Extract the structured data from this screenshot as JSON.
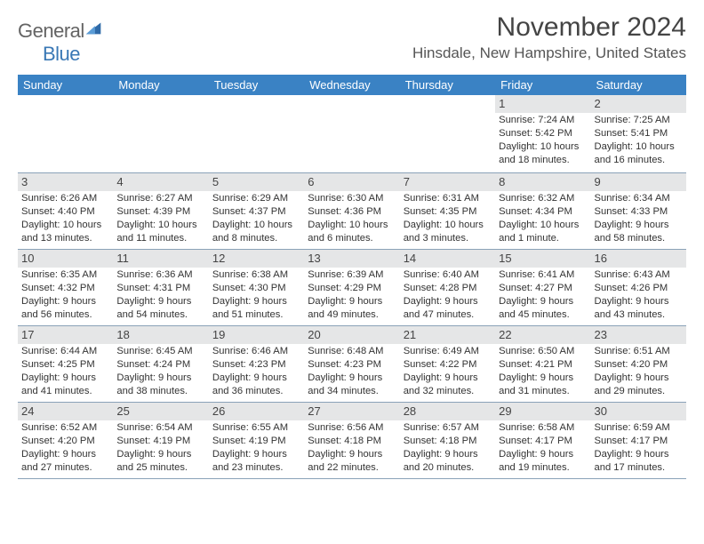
{
  "branding": {
    "word1": "General",
    "word2": "Blue",
    "word1_color": "#646464",
    "word2_color": "#3a78b5",
    "mark_color": "#2f6aa8"
  },
  "title": "November 2024",
  "location": "Hinsdale, New Hampshire, United States",
  "header_bg": "#3a82c4",
  "header_fg": "#ffffff",
  "daynum_bg": "#e5e6e7",
  "border_color": "#8aa2b8",
  "day_headers": [
    "Sunday",
    "Monday",
    "Tuesday",
    "Wednesday",
    "Thursday",
    "Friday",
    "Saturday"
  ],
  "weeks": [
    [
      null,
      null,
      null,
      null,
      null,
      {
        "n": "1",
        "sunrise": "Sunrise: 7:24 AM",
        "sunset": "Sunset: 5:42 PM",
        "dl1": "Daylight: 10 hours",
        "dl2": "and 18 minutes."
      },
      {
        "n": "2",
        "sunrise": "Sunrise: 7:25 AM",
        "sunset": "Sunset: 5:41 PM",
        "dl1": "Daylight: 10 hours",
        "dl2": "and 16 minutes."
      }
    ],
    [
      {
        "n": "3",
        "sunrise": "Sunrise: 6:26 AM",
        "sunset": "Sunset: 4:40 PM",
        "dl1": "Daylight: 10 hours",
        "dl2": "and 13 minutes."
      },
      {
        "n": "4",
        "sunrise": "Sunrise: 6:27 AM",
        "sunset": "Sunset: 4:39 PM",
        "dl1": "Daylight: 10 hours",
        "dl2": "and 11 minutes."
      },
      {
        "n": "5",
        "sunrise": "Sunrise: 6:29 AM",
        "sunset": "Sunset: 4:37 PM",
        "dl1": "Daylight: 10 hours",
        "dl2": "and 8 minutes."
      },
      {
        "n": "6",
        "sunrise": "Sunrise: 6:30 AM",
        "sunset": "Sunset: 4:36 PM",
        "dl1": "Daylight: 10 hours",
        "dl2": "and 6 minutes."
      },
      {
        "n": "7",
        "sunrise": "Sunrise: 6:31 AM",
        "sunset": "Sunset: 4:35 PM",
        "dl1": "Daylight: 10 hours",
        "dl2": "and 3 minutes."
      },
      {
        "n": "8",
        "sunrise": "Sunrise: 6:32 AM",
        "sunset": "Sunset: 4:34 PM",
        "dl1": "Daylight: 10 hours",
        "dl2": "and 1 minute."
      },
      {
        "n": "9",
        "sunrise": "Sunrise: 6:34 AM",
        "sunset": "Sunset: 4:33 PM",
        "dl1": "Daylight: 9 hours",
        "dl2": "and 58 minutes."
      }
    ],
    [
      {
        "n": "10",
        "sunrise": "Sunrise: 6:35 AM",
        "sunset": "Sunset: 4:32 PM",
        "dl1": "Daylight: 9 hours",
        "dl2": "and 56 minutes."
      },
      {
        "n": "11",
        "sunrise": "Sunrise: 6:36 AM",
        "sunset": "Sunset: 4:31 PM",
        "dl1": "Daylight: 9 hours",
        "dl2": "and 54 minutes."
      },
      {
        "n": "12",
        "sunrise": "Sunrise: 6:38 AM",
        "sunset": "Sunset: 4:30 PM",
        "dl1": "Daylight: 9 hours",
        "dl2": "and 51 minutes."
      },
      {
        "n": "13",
        "sunrise": "Sunrise: 6:39 AM",
        "sunset": "Sunset: 4:29 PM",
        "dl1": "Daylight: 9 hours",
        "dl2": "and 49 minutes."
      },
      {
        "n": "14",
        "sunrise": "Sunrise: 6:40 AM",
        "sunset": "Sunset: 4:28 PM",
        "dl1": "Daylight: 9 hours",
        "dl2": "and 47 minutes."
      },
      {
        "n": "15",
        "sunrise": "Sunrise: 6:41 AM",
        "sunset": "Sunset: 4:27 PM",
        "dl1": "Daylight: 9 hours",
        "dl2": "and 45 minutes."
      },
      {
        "n": "16",
        "sunrise": "Sunrise: 6:43 AM",
        "sunset": "Sunset: 4:26 PM",
        "dl1": "Daylight: 9 hours",
        "dl2": "and 43 minutes."
      }
    ],
    [
      {
        "n": "17",
        "sunrise": "Sunrise: 6:44 AM",
        "sunset": "Sunset: 4:25 PM",
        "dl1": "Daylight: 9 hours",
        "dl2": "and 41 minutes."
      },
      {
        "n": "18",
        "sunrise": "Sunrise: 6:45 AM",
        "sunset": "Sunset: 4:24 PM",
        "dl1": "Daylight: 9 hours",
        "dl2": "and 38 minutes."
      },
      {
        "n": "19",
        "sunrise": "Sunrise: 6:46 AM",
        "sunset": "Sunset: 4:23 PM",
        "dl1": "Daylight: 9 hours",
        "dl2": "and 36 minutes."
      },
      {
        "n": "20",
        "sunrise": "Sunrise: 6:48 AM",
        "sunset": "Sunset: 4:23 PM",
        "dl1": "Daylight: 9 hours",
        "dl2": "and 34 minutes."
      },
      {
        "n": "21",
        "sunrise": "Sunrise: 6:49 AM",
        "sunset": "Sunset: 4:22 PM",
        "dl1": "Daylight: 9 hours",
        "dl2": "and 32 minutes."
      },
      {
        "n": "22",
        "sunrise": "Sunrise: 6:50 AM",
        "sunset": "Sunset: 4:21 PM",
        "dl1": "Daylight: 9 hours",
        "dl2": "and 31 minutes."
      },
      {
        "n": "23",
        "sunrise": "Sunrise: 6:51 AM",
        "sunset": "Sunset: 4:20 PM",
        "dl1": "Daylight: 9 hours",
        "dl2": "and 29 minutes."
      }
    ],
    [
      {
        "n": "24",
        "sunrise": "Sunrise: 6:52 AM",
        "sunset": "Sunset: 4:20 PM",
        "dl1": "Daylight: 9 hours",
        "dl2": "and 27 minutes."
      },
      {
        "n": "25",
        "sunrise": "Sunrise: 6:54 AM",
        "sunset": "Sunset: 4:19 PM",
        "dl1": "Daylight: 9 hours",
        "dl2": "and 25 minutes."
      },
      {
        "n": "26",
        "sunrise": "Sunrise: 6:55 AM",
        "sunset": "Sunset: 4:19 PM",
        "dl1": "Daylight: 9 hours",
        "dl2": "and 23 minutes."
      },
      {
        "n": "27",
        "sunrise": "Sunrise: 6:56 AM",
        "sunset": "Sunset: 4:18 PM",
        "dl1": "Daylight: 9 hours",
        "dl2": "and 22 minutes."
      },
      {
        "n": "28",
        "sunrise": "Sunrise: 6:57 AM",
        "sunset": "Sunset: 4:18 PM",
        "dl1": "Daylight: 9 hours",
        "dl2": "and 20 minutes."
      },
      {
        "n": "29",
        "sunrise": "Sunrise: 6:58 AM",
        "sunset": "Sunset: 4:17 PM",
        "dl1": "Daylight: 9 hours",
        "dl2": "and 19 minutes."
      },
      {
        "n": "30",
        "sunrise": "Sunrise: 6:59 AM",
        "sunset": "Sunset: 4:17 PM",
        "dl1": "Daylight: 9 hours",
        "dl2": "and 17 minutes."
      }
    ]
  ]
}
